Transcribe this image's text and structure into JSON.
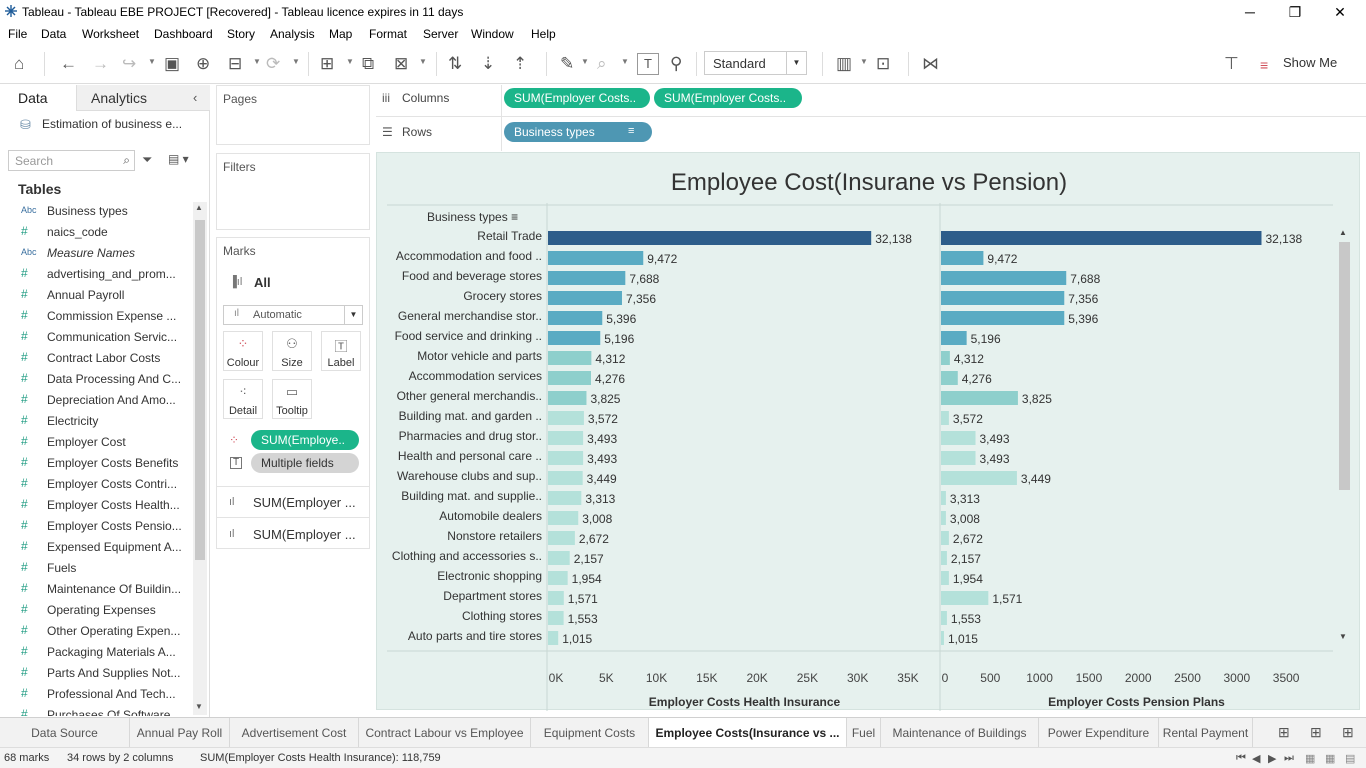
{
  "window": {
    "title": "Tableau - Tableau EBE PROJECT [Recovered] - Tableau licence expires in 11 days"
  },
  "menu": [
    "File",
    "Data",
    "Worksheet",
    "Dashboard",
    "Story",
    "Analysis",
    "Map",
    "Format",
    "Server",
    "Window",
    "Help"
  ],
  "toolbar": {
    "fit_option": "Standard",
    "show_me": "Show Me"
  },
  "left_pane": {
    "tabs": [
      "Data",
      "Analytics"
    ],
    "datasource": "Estimation of business e...",
    "search_placeholder": "Search",
    "tables_header": "Tables",
    "fields": [
      {
        "type": "Abc",
        "name": "Business types"
      },
      {
        "type": "#",
        "name": "naics_code"
      },
      {
        "type": "Abc",
        "name": "Measure Names"
      },
      {
        "type": "#",
        "name": "advertising_and_prom..."
      },
      {
        "type": "#",
        "name": "Annual Payroll"
      },
      {
        "type": "#",
        "name": "Commission Expense ..."
      },
      {
        "type": "#",
        "name": "Communication Servic..."
      },
      {
        "type": "#",
        "name": "Contract Labor Costs"
      },
      {
        "type": "#",
        "name": "Data Processing And C..."
      },
      {
        "type": "#",
        "name": "Depreciation And Amo..."
      },
      {
        "type": "#",
        "name": "Electricity"
      },
      {
        "type": "#",
        "name": "Employer Cost"
      },
      {
        "type": "#",
        "name": "Employer Costs Benefits"
      },
      {
        "type": "#",
        "name": "Employer Costs Contri..."
      },
      {
        "type": "#",
        "name": "Employer Costs Health..."
      },
      {
        "type": "#",
        "name": "Employer Costs Pensio..."
      },
      {
        "type": "#",
        "name": "Expensed Equipment A..."
      },
      {
        "type": "#",
        "name": "Fuels"
      },
      {
        "type": "#",
        "name": "Maintenance Of Buildin..."
      },
      {
        "type": "#",
        "name": "Operating Expenses"
      },
      {
        "type": "#",
        "name": "Other Operating Expen..."
      },
      {
        "type": "#",
        "name": "Packaging Materials A..."
      },
      {
        "type": "#",
        "name": "Parts And Supplies Not..."
      },
      {
        "type": "#",
        "name": "Professional And Tech..."
      },
      {
        "type": "#",
        "name": "Purchases Of Software..."
      }
    ]
  },
  "cards": {
    "pages": "Pages",
    "filters": "Filters",
    "marks": "Marks",
    "marks_all": "All",
    "mark_type": "Automatic",
    "mark_buttons": [
      "Colour",
      "Size",
      "Label",
      "Detail",
      "Tooltip"
    ],
    "mark_pill_1": "SUM(Employe..",
    "mark_pill_2": "Multiple fields",
    "measure_1": "SUM(Employer ...",
    "measure_2": "SUM(Employer ..."
  },
  "shelves": {
    "columns_label": "Columns",
    "rows_label": "Rows",
    "column_pills": [
      "SUM(Employer Costs..",
      "SUM(Employer Costs.."
    ],
    "row_pill": "Business types"
  },
  "chart_data": {
    "type": "bar",
    "title": "Employee Cost(Insurane vs Pension)",
    "row_header": "Business types",
    "categories": [
      "Retail Trade",
      "Accommodation and food ..",
      "Food and beverage stores",
      "Grocery stores",
      "General merchandise stor..",
      "Food service and drinking ..",
      "Motor vehicle and parts",
      "Accommodation services",
      "Other general merchandis..",
      "Building mat. and garden ..",
      "Pharmacies and drug stor..",
      "Health and personal care ..",
      "Warehouse clubs and sup..",
      "Building mat. and supplie..",
      "Automobile dealers",
      "Nonstore retailers",
      "Clothing and accessories s..",
      "Electronic shopping",
      "Department stores",
      "Clothing stores",
      "Auto parts and tire stores"
    ],
    "labels": [
      "32,138",
      "9,472",
      "7,688",
      "7,356",
      "5,396",
      "5,196",
      "4,312",
      "4,276",
      "3,825",
      "3,572",
      "3,493",
      "3,493",
      "3,449",
      "3,313",
      "3,008",
      "2,672",
      "2,157",
      "1,954",
      "1,571",
      "1,553",
      "1,015"
    ],
    "series": [
      {
        "name": "Employer Costs Health Insurance",
        "axis_ticks": [
          "0K",
          "5K",
          "10K",
          "15K",
          "20K",
          "25K",
          "30K",
          "35K"
        ],
        "xlim": [
          0,
          35500
        ],
        "values": [
          32138,
          9472,
          7688,
          7356,
          5396,
          5196,
          4312,
          4276,
          3825,
          3572,
          3493,
          3493,
          3449,
          3313,
          3008,
          2672,
          2157,
          1954,
          1571,
          1553,
          1015
        ]
      },
      {
        "name": "Employer Costs Pension Plans",
        "axis_ticks": [
          "0",
          "500",
          "1000",
          "1500",
          "2000",
          "2500",
          "3000",
          "3500"
        ],
        "xlim": [
          0,
          3600
        ],
        "values": [
          3250,
          430,
          1270,
          1250,
          1250,
          260,
          90,
          170,
          780,
          80,
          350,
          350,
          770,
          50,
          50,
          80,
          60,
          80,
          480,
          60,
          30
        ]
      }
    ],
    "colors": {
      "dark": "#2d5d8a",
      "mid": "#5aabc3",
      "light": "#8ecfcc",
      "lightest": "#b4e1da"
    }
  },
  "sheet_tabs": [
    "Data Source",
    "Annual Pay Roll",
    "Advertisement Cost",
    "Contract Labour vs Employee",
    "Equipment  Costs",
    "Employee Costs(Insurance vs ...",
    "Fuel",
    "Maintenance of Buildings",
    "Power Expenditure",
    "Rental Payment"
  ],
  "active_tab": 5,
  "status": {
    "marks": "68 marks",
    "dims": "34 rows by 2 columns",
    "sum": "SUM(Employer Costs Health Insurance): 118,759"
  }
}
